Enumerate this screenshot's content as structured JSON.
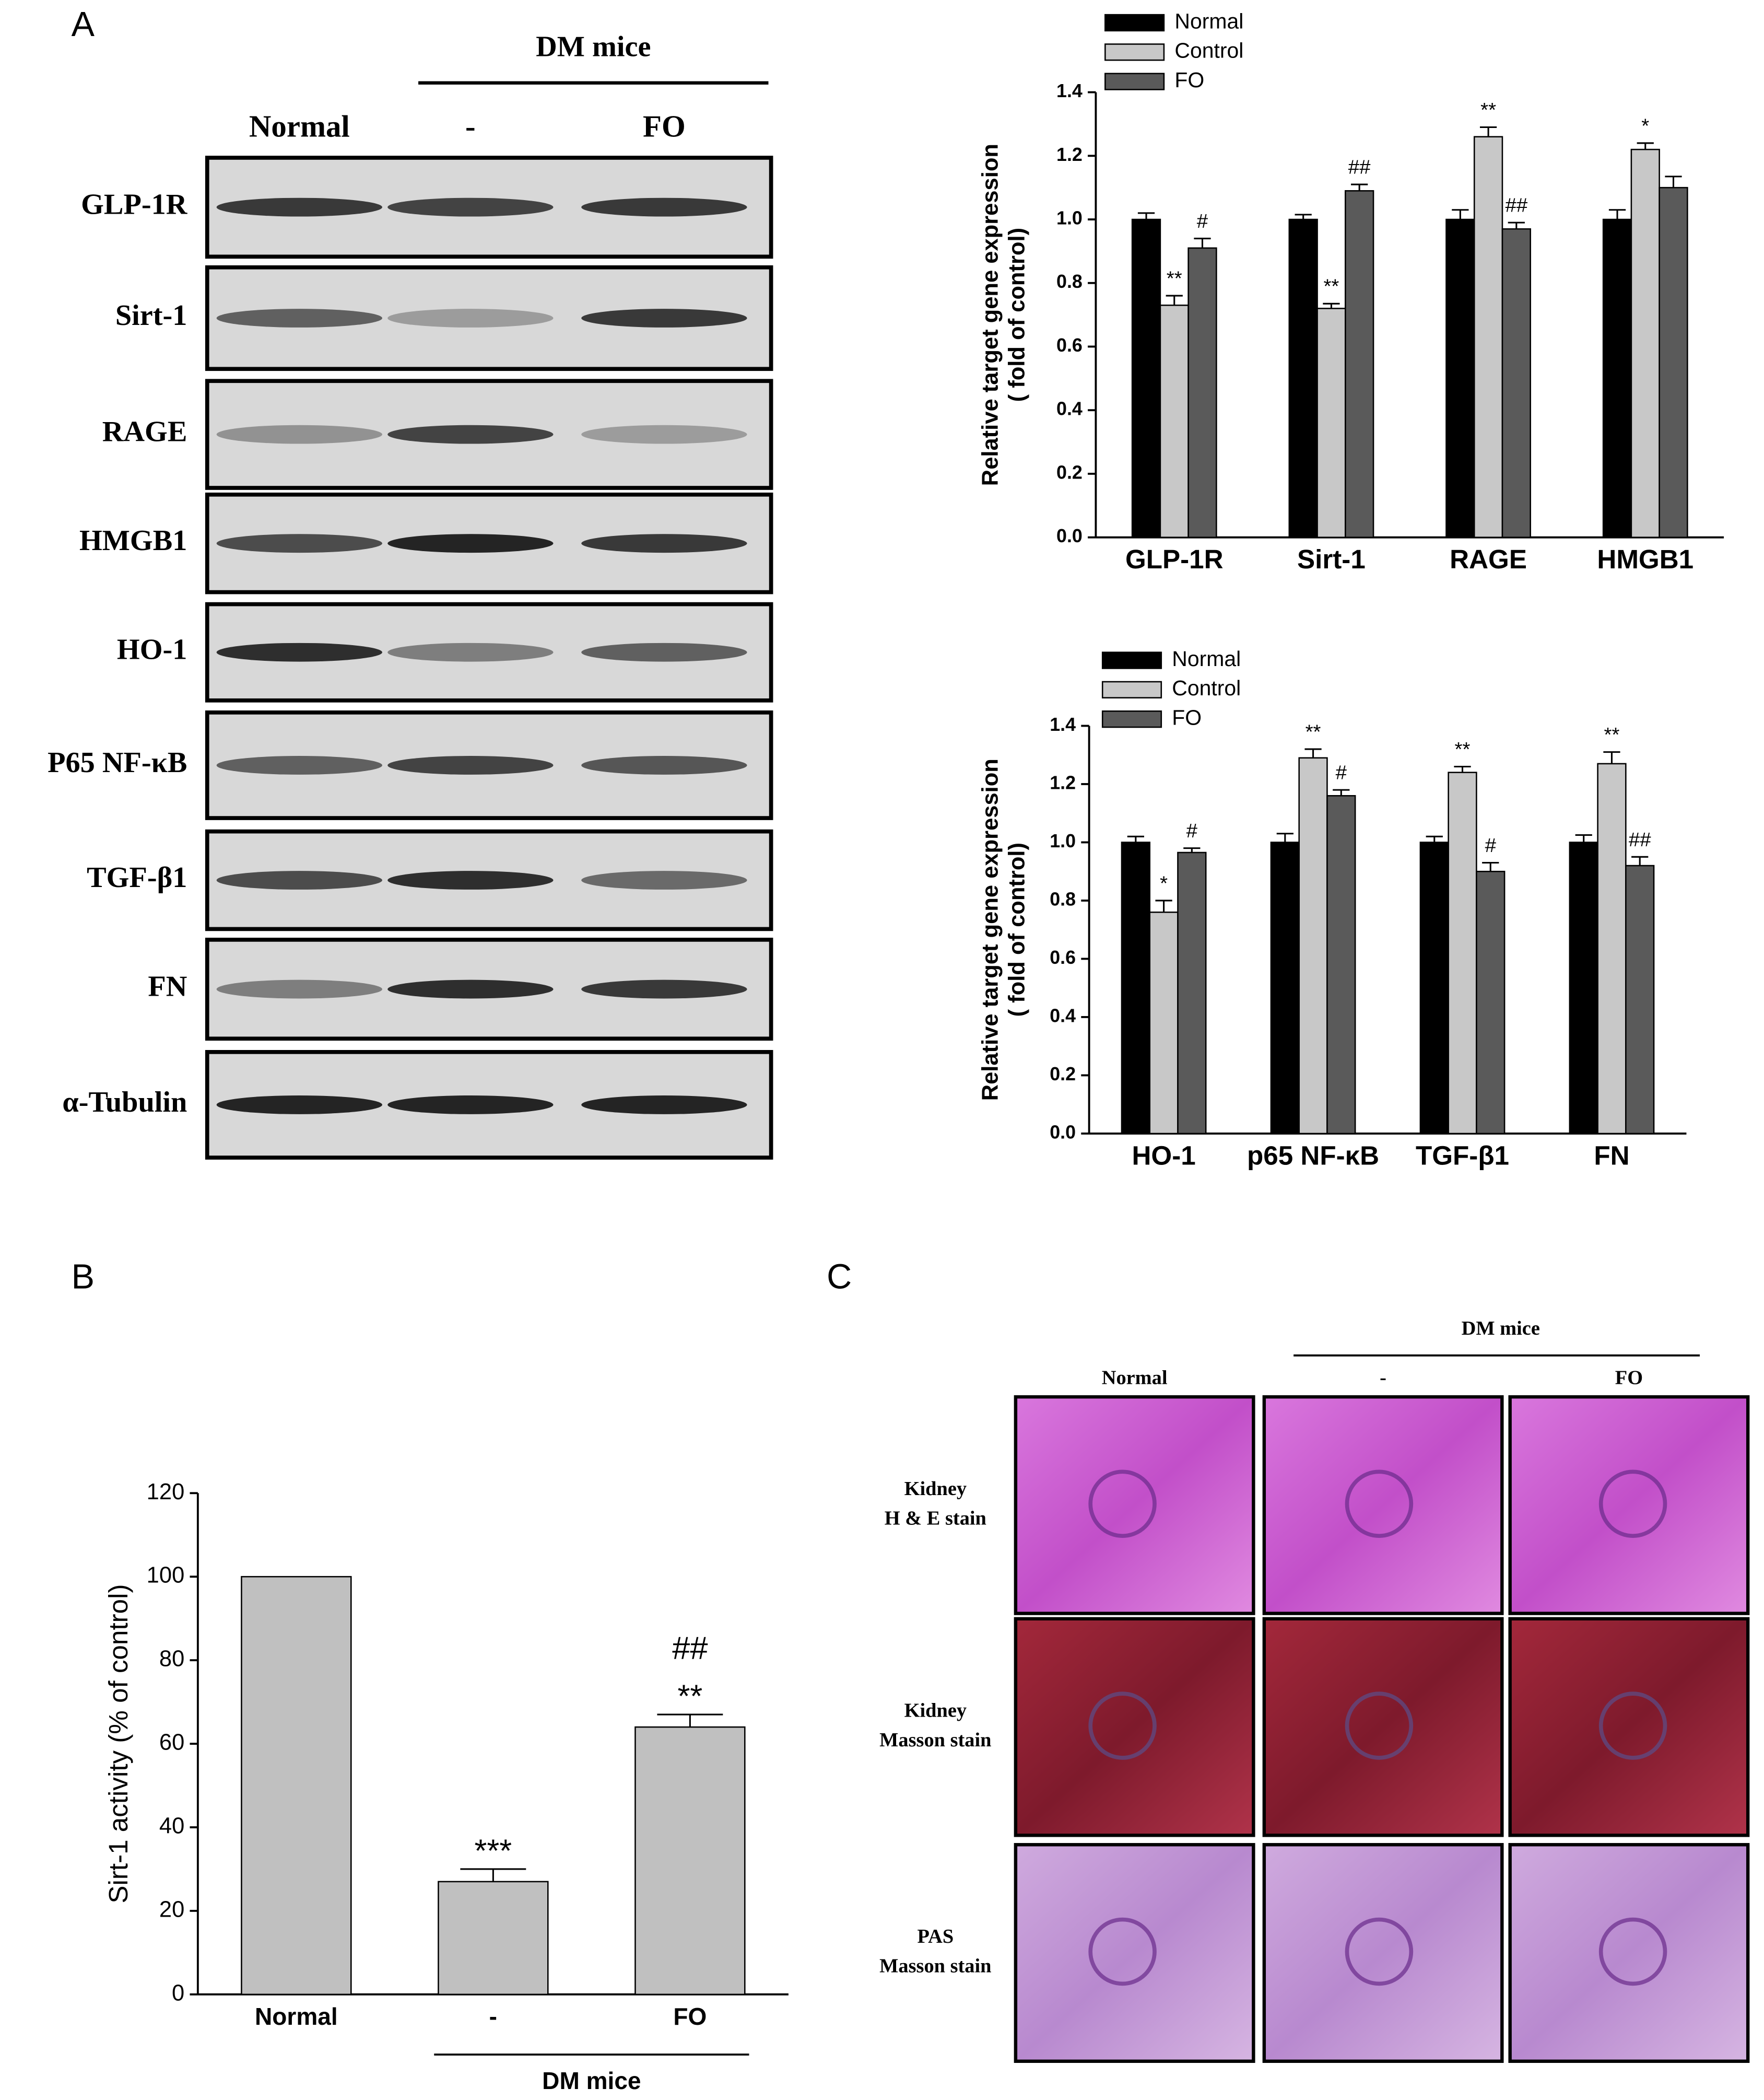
{
  "panels": [
    "A",
    "B",
    "C"
  ],
  "blot": {
    "group_label": "DM mice",
    "columns": [
      "Normal",
      "-",
      "FO"
    ],
    "rows": [
      "GLP-1R",
      "Sirt-1",
      "RAGE",
      "HMGB1",
      "HO-1",
      "P65 NF-κB",
      "TGF-β1",
      "FN",
      "α-Tubulin"
    ]
  },
  "histology": {
    "group_label": "DM mice",
    "columns": [
      "Normal",
      "-",
      "FO"
    ],
    "rows": [
      [
        "Kidney",
        "H & E stain"
      ],
      [
        "Kidney",
        "Masson stain"
      ],
      [
        "PAS",
        "Masson stain"
      ]
    ]
  },
  "chart_data": [
    {
      "type": "bar",
      "y_label": [
        "Relative target gene expression",
        "( fold of control)"
      ],
      "categories": [
        "GLP-1R",
        "Sirt-1",
        "RAGE",
        "HMGB1"
      ],
      "series": [
        {
          "name": "Normal",
          "color": "#000000",
          "values": [
            1.0,
            1.0,
            1.0,
            1.0
          ],
          "errors": [
            0.02,
            0.015,
            0.03,
            0.03
          ],
          "markers": [
            null,
            null,
            null,
            null
          ]
        },
        {
          "name": "Control",
          "color": "#c8c8c8",
          "values": [
            0.73,
            0.72,
            1.26,
            1.22
          ],
          "errors": [
            0.03,
            0.015,
            0.03,
            0.02
          ],
          "markers": [
            "**",
            "**",
            "**",
            "*"
          ]
        },
        {
          "name": "FO",
          "color": "#5a5a5a",
          "values": [
            0.91,
            1.09,
            0.97,
            1.1
          ],
          "errors": [
            0.03,
            0.02,
            0.02,
            0.035
          ],
          "markers": [
            "#",
            "##",
            "##",
            null
          ]
        }
      ],
      "ylim": [
        0,
        1.4
      ],
      "yticks": [
        {
          "value": 0,
          "label": "0.0"
        },
        0.2,
        0.4,
        0.6,
        0.8,
        {
          "value": 1,
          "label": "1.0"
        },
        1.2,
        1.4
      ],
      "legend": "upper left"
    },
    {
      "type": "bar",
      "y_label": [
        "Relative target gene expression",
        "( fold of control)"
      ],
      "categories": [
        "HO-1",
        "p65 NF-κB",
        "TGF-β1",
        "FN"
      ],
      "series": [
        {
          "name": "Normal",
          "color": "#000000",
          "values": [
            1.0,
            1.0,
            1.0,
            1.0
          ],
          "errors": [
            0.02,
            0.03,
            0.02,
            0.025
          ],
          "markers": [
            null,
            null,
            null,
            null
          ]
        },
        {
          "name": "Control",
          "color": "#c8c8c8",
          "values": [
            0.76,
            1.29,
            1.24,
            1.27
          ],
          "errors": [
            0.04,
            0.03,
            0.02,
            0.04
          ],
          "markers": [
            "*",
            "**",
            "**",
            "**"
          ]
        },
        {
          "name": "FO",
          "color": "#5a5a5a",
          "values": [
            0.965,
            1.16,
            0.9,
            0.92
          ],
          "errors": [
            0.015,
            0.02,
            0.03,
            0.03
          ],
          "markers": [
            "#",
            "#",
            "#",
            "##"
          ]
        }
      ],
      "ylim": [
        0,
        1.4
      ],
      "yticks": [
        {
          "value": 0,
          "label": "0.0"
        },
        0.2,
        0.4,
        0.6,
        0.8,
        {
          "value": 1,
          "label": "1.0"
        },
        1.2,
        1.4
      ],
      "legend": "upper left"
    },
    {
      "type": "bar",
      "y_label": "Sirt-1 activity (% of control)",
      "categories": [
        "Normal",
        "-",
        "FO"
      ],
      "x_group_label": "DM mice",
      "series": [
        {
          "color": "#c0c0c0",
          "values": [
            100,
            27,
            64
          ],
          "errors": [
            null,
            3,
            3
          ],
          "markers": [
            null,
            [
              "***"
            ],
            [
              "**",
              "##"
            ]
          ]
        }
      ],
      "ylim": [
        0,
        120
      ],
      "yticks": [
        0,
        20,
        40,
        60,
        80,
        100,
        120
      ]
    }
  ]
}
